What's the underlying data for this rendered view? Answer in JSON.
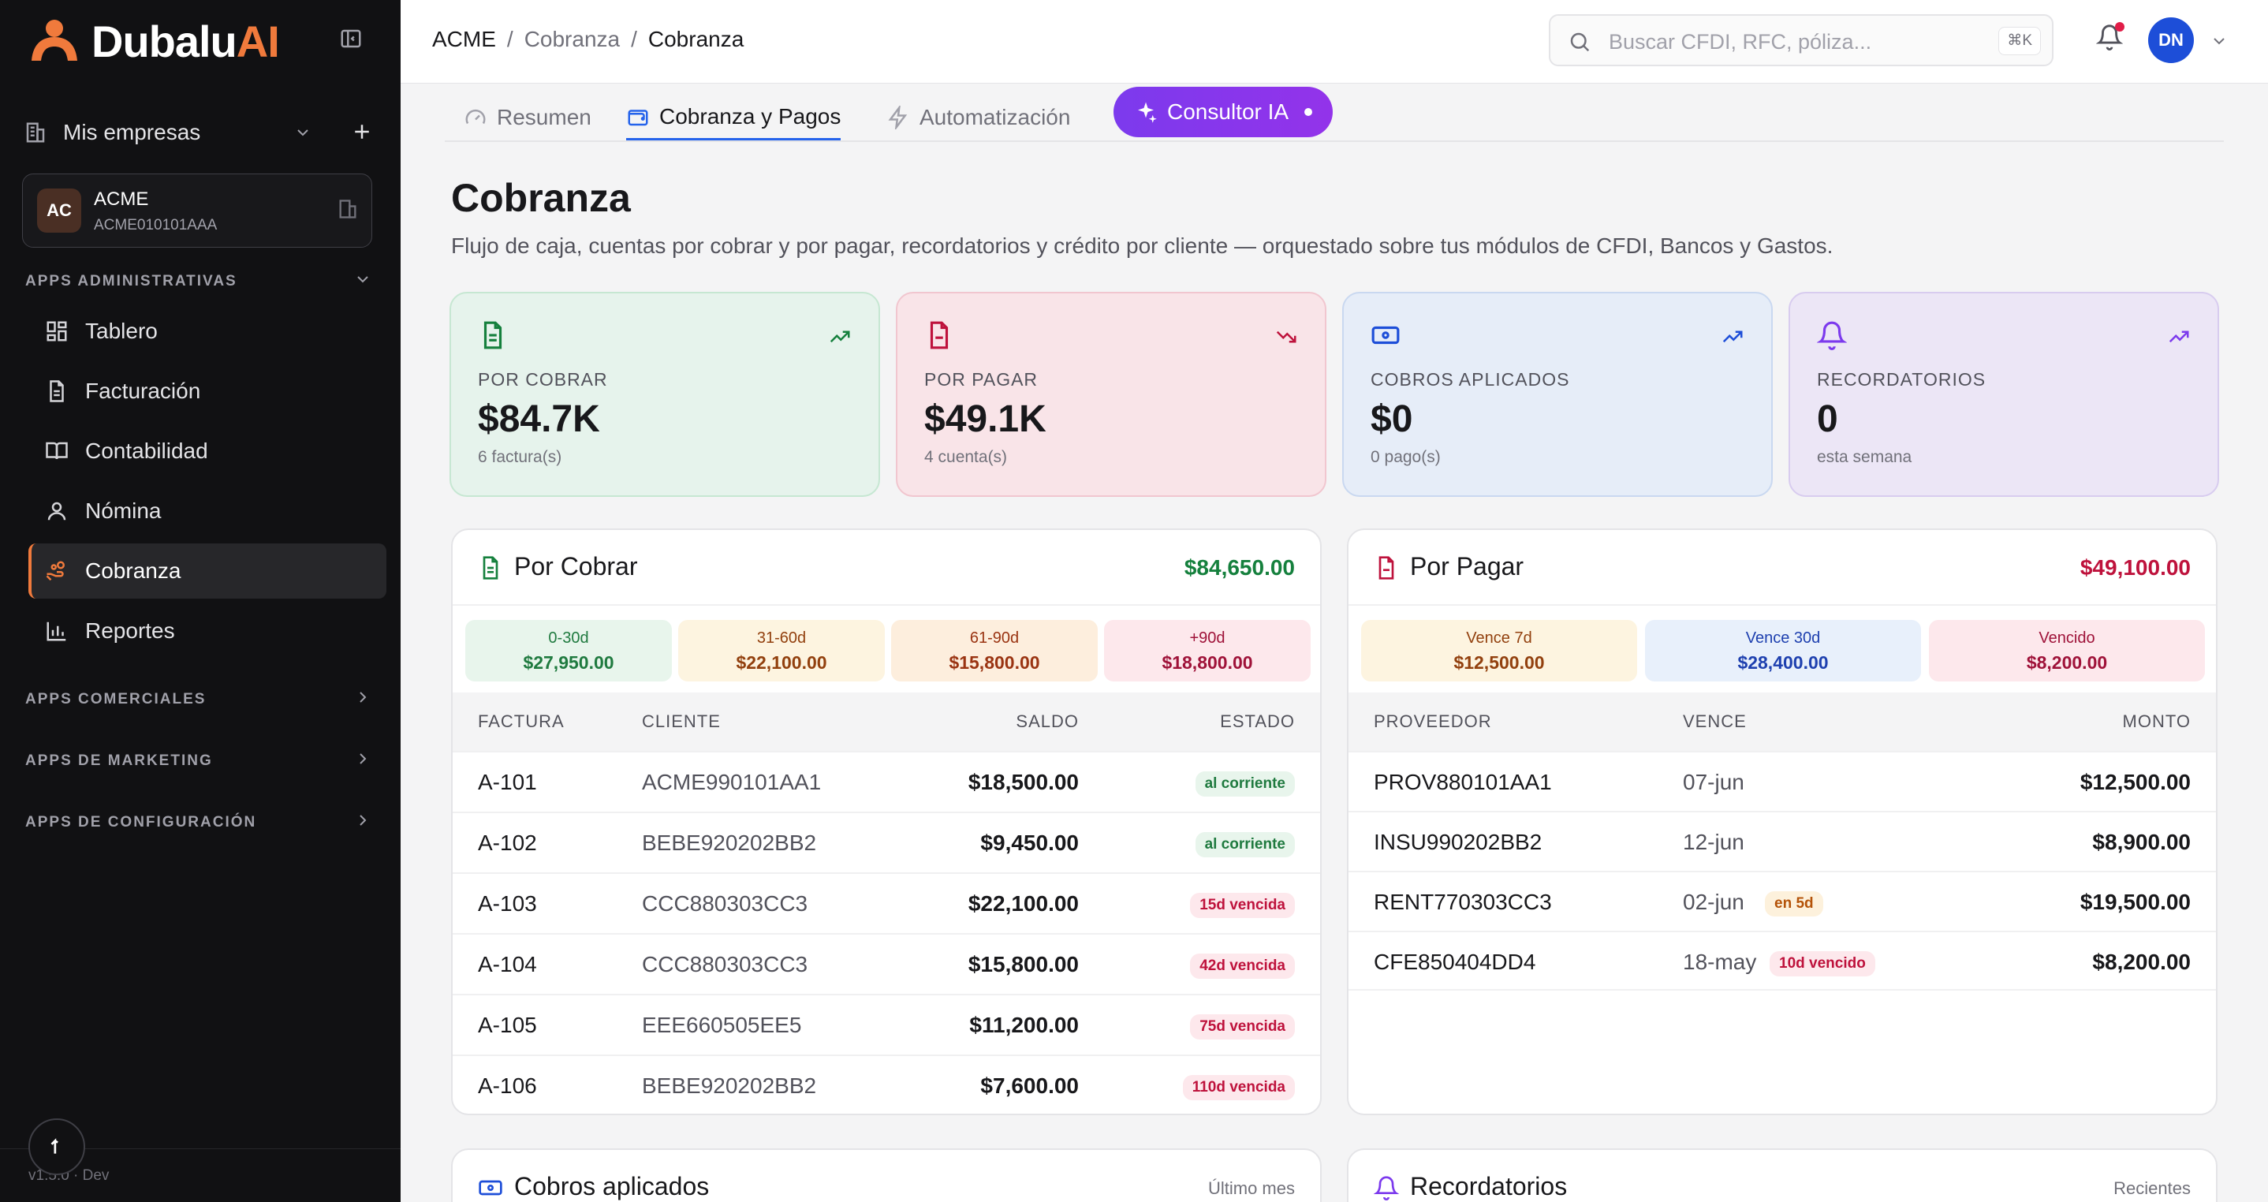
{
  "sidebar": {
    "brand": "Dubalu",
    "brand_ai": "AI",
    "companies_label": "Mis empresas",
    "company": {
      "initials": "AC",
      "name": "ACME",
      "rfc": "ACME010101AAA"
    },
    "sections": {
      "admin": "APPS ADMINISTRATIVAS",
      "commercial": "APPS COMERCIALES",
      "marketing": "APPS DE MARKETING",
      "config": "APPS DE CONFIGURACIÓN"
    },
    "items": [
      {
        "label": "Tablero",
        "icon": "grid-icon"
      },
      {
        "label": "Facturación",
        "icon": "document-icon"
      },
      {
        "label": "Contabilidad",
        "icon": "book-icon"
      },
      {
        "label": "Nómina",
        "icon": "user-icon"
      },
      {
        "label": "Cobranza",
        "icon": "hand-coins-icon"
      },
      {
        "label": "Reportes",
        "icon": "bar-chart-icon"
      }
    ],
    "version": "v1.5.0 · Dev"
  },
  "topbar": {
    "crumbs": [
      "ACME",
      "Cobranza",
      "Cobranza"
    ],
    "search_placeholder": "Buscar CFDI, RFC, póliza...",
    "shortcut": "⌘K",
    "user_initials": "DN"
  },
  "tabs": {
    "resumen": "Resumen",
    "cobranza": "Cobranza y Pagos",
    "auto": "Automatización",
    "ia": "Consultor IA"
  },
  "page": {
    "title": "Cobranza",
    "subtitle": "Flujo de caja, cuentas por cobrar y por pagar, recordatorios y crédito por cliente — orquestado sobre tus módulos de CFDI, Bancos y Gastos."
  },
  "kpis": [
    {
      "label": "POR COBRAR",
      "value": "$84.7K",
      "sub": "6 factura(s)",
      "color": "#15803d"
    },
    {
      "label": "POR PAGAR",
      "value": "$49.1K",
      "sub": "4 cuenta(s)",
      "color": "#be123c"
    },
    {
      "label": "COBROS APLICADOS",
      "value": "$0",
      "sub": "0 pago(s)",
      "color": "#1d4ed8"
    },
    {
      "label": "RECORDATORIOS",
      "value": "0",
      "sub": "esta semana",
      "color": "#7c3aed"
    }
  ],
  "cobrar": {
    "title": "Por Cobrar",
    "total": "$84,650.00",
    "aging": [
      {
        "label": "0-30d",
        "value": "$27,950.00"
      },
      {
        "label": "31-60d",
        "value": "$22,100.00"
      },
      {
        "label": "61-90d",
        "value": "$15,800.00"
      },
      {
        "label": "+90d",
        "value": "$18,800.00"
      }
    ],
    "headers": {
      "invoice": "FACTURA",
      "client": "CLIENTE",
      "balance": "SALDO",
      "status": "ESTADO"
    },
    "rows": [
      {
        "invoice": "A-101",
        "client": "ACME990101AA1",
        "balance": "$18,500.00",
        "status": "al corriente"
      },
      {
        "invoice": "A-102",
        "client": "BEBE920202BB2",
        "balance": "$9,450.00",
        "status": "al corriente"
      },
      {
        "invoice": "A-103",
        "client": "CCC880303CC3",
        "balance": "$22,100.00",
        "status": "15d vencida"
      },
      {
        "invoice": "A-104",
        "client": "CCC880303CC3",
        "balance": "$15,800.00",
        "status": "42d vencida"
      },
      {
        "invoice": "A-105",
        "client": "EEE660505EE5",
        "balance": "$11,200.00",
        "status": "75d vencida"
      },
      {
        "invoice": "A-106",
        "client": "BEBE920202BB2",
        "balance": "$7,600.00",
        "status": "110d vencida"
      }
    ]
  },
  "pagar": {
    "title": "Por Pagar",
    "total": "$49,100.00",
    "aging": [
      {
        "label": "Vence 7d",
        "value": "$12,500.00"
      },
      {
        "label": "Vence 30d",
        "value": "$28,400.00"
      },
      {
        "label": "Vencido",
        "value": "$8,200.00"
      }
    ],
    "headers": {
      "supplier": "PROVEEDOR",
      "due": "VENCE",
      "amount": "MONTO"
    },
    "rows": [
      {
        "supplier": "PROV880101AA1",
        "due": "07-jun",
        "tag": "",
        "amount": "$12,500.00"
      },
      {
        "supplier": "INSU990202BB2",
        "due": "12-jun",
        "tag": "",
        "amount": "$8,900.00"
      },
      {
        "supplier": "RENT770303CC3",
        "due": "02-jun",
        "tag": "en 5d",
        "amount": "$19,500.00"
      },
      {
        "supplier": "CFE850404DD4",
        "due": "18-may",
        "tag": "10d vencido",
        "amount": "$8,200.00"
      }
    ]
  },
  "cobros": {
    "title": "Cobros aplicados",
    "period": "Último mes"
  },
  "recordatorios": {
    "title": "Recordatorios",
    "period": "Recientes"
  }
}
